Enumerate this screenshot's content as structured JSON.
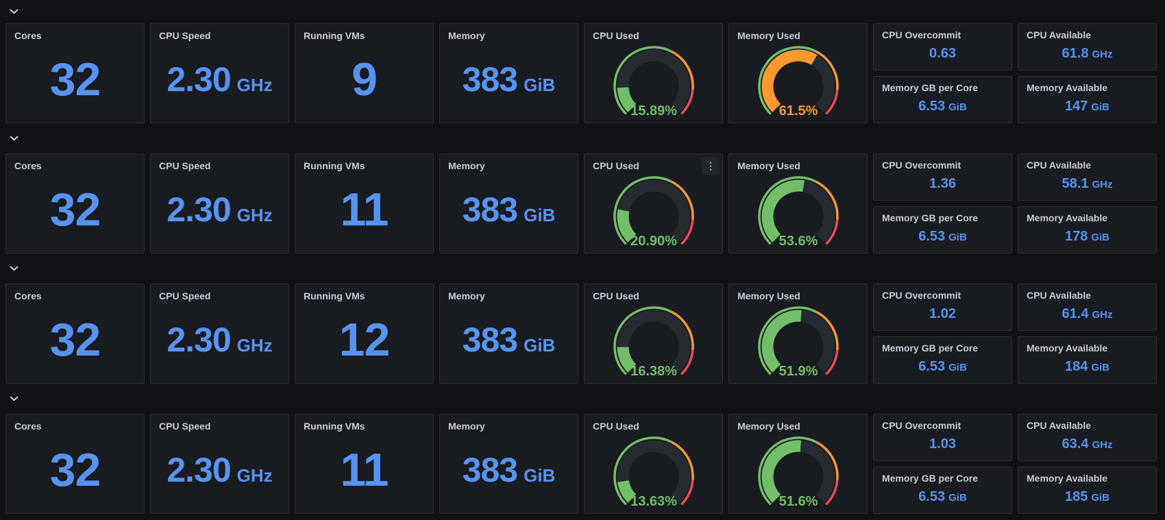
{
  "colors": {
    "blue": "#5794F2",
    "green": "#73BF69",
    "orange": "#FF9830",
    "red": "#F2495C"
  },
  "icons": {
    "row_collapse": "chevron-down",
    "panel_menu": "kebab-vertical",
    "panel_menu_glyph": "⋮"
  },
  "titles": {
    "cores": "Cores",
    "cpu_speed": "CPU Speed",
    "running_vms": "Running VMs",
    "memory": "Memory",
    "cpu_used": "CPU Used",
    "memory_used": "Memory Used",
    "cpu_overcommit": "CPU Overcommit",
    "memory_gb_per_core": "Memory GB per Core",
    "cpu_available": "CPU Available",
    "memory_available": "Memory Available"
  },
  "gauge": {
    "min": 0,
    "max": 100,
    "thresholds": [
      {
        "pct": 0,
        "color": "#73BF69"
      },
      {
        "pct": 60,
        "color": "#FF9830"
      },
      {
        "pct": 85,
        "color": "#F2495C"
      }
    ]
  },
  "rows": [
    {
      "cores": "32",
      "cpu_speed": "2.30",
      "cpu_speed_unit": "GHz",
      "running_vms": "9",
      "memory": "383",
      "memory_unit": "GiB",
      "cpu_used": {
        "value": 15.89,
        "label": "15.89%",
        "color": "#73BF69"
      },
      "memory_used": {
        "value": 61.5,
        "label": "61.5%",
        "color": "#FF9830"
      },
      "cpu_overcommit": {
        "value": "0.63"
      },
      "memory_gb_per_core": {
        "value": "6.53",
        "unit": "GiB"
      },
      "cpu_available": {
        "value": "61.8",
        "unit": "GHz"
      },
      "memory_available": {
        "value": "147",
        "unit": "GiB"
      }
    },
    {
      "cores": "32",
      "cpu_speed": "2.30",
      "cpu_speed_unit": "GHz",
      "running_vms": "11",
      "memory": "383",
      "memory_unit": "GiB",
      "cpu_used": {
        "value": 20.9,
        "label": "20.90%",
        "color": "#73BF69"
      },
      "memory_used": {
        "value": 53.6,
        "label": "53.6%",
        "color": "#73BF69"
      },
      "cpu_overcommit": {
        "value": "1.36"
      },
      "memory_gb_per_core": {
        "value": "6.53",
        "unit": "GiB"
      },
      "cpu_available": {
        "value": "58.1",
        "unit": "GHz"
      },
      "memory_available": {
        "value": "178",
        "unit": "GiB"
      }
    },
    {
      "cores": "32",
      "cpu_speed": "2.30",
      "cpu_speed_unit": "GHz",
      "running_vms": "12",
      "memory": "383",
      "memory_unit": "GiB",
      "cpu_used": {
        "value": 16.38,
        "label": "16.38%",
        "color": "#73BF69"
      },
      "memory_used": {
        "value": 51.9,
        "label": "51.9%",
        "color": "#73BF69"
      },
      "cpu_overcommit": {
        "value": "1.02"
      },
      "memory_gb_per_core": {
        "value": "6.53",
        "unit": "GiB"
      },
      "cpu_available": {
        "value": "61.4",
        "unit": "GHz"
      },
      "memory_available": {
        "value": "184",
        "unit": "GiB"
      }
    },
    {
      "cores": "32",
      "cpu_speed": "2.30",
      "cpu_speed_unit": "GHz",
      "running_vms": "11",
      "memory": "383",
      "memory_unit": "GiB",
      "cpu_used": {
        "value": 13.63,
        "label": "13.63%",
        "color": "#73BF69"
      },
      "memory_used": {
        "value": 51.6,
        "label": "51.6%",
        "color": "#73BF69"
      },
      "cpu_overcommit": {
        "value": "1.03"
      },
      "memory_gb_per_core": {
        "value": "6.53",
        "unit": "GiB"
      },
      "cpu_available": {
        "value": "63.4",
        "unit": "GHz"
      },
      "memory_available": {
        "value": "185",
        "unit": "GiB"
      }
    }
  ]
}
